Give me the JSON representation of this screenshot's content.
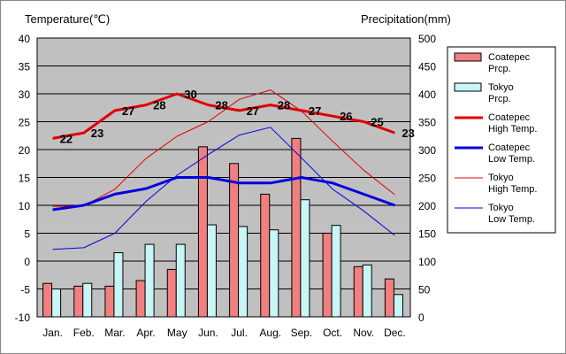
{
  "chart_data": {
    "type": "bar+line",
    "left_axis_title": "Temperature(℃)",
    "right_axis_title": "Precipitation(mm)",
    "left_ylim": [
      -10,
      40
    ],
    "left_ticks": [
      "-10",
      "-5",
      "0",
      "5",
      "10",
      "15",
      "20",
      "25",
      "30",
      "35",
      "40"
    ],
    "right_ylim": [
      0,
      500
    ],
    "right_ticks": [
      "0",
      "50",
      "100",
      "150",
      "200",
      "250",
      "300",
      "350",
      "400",
      "450",
      "500"
    ],
    "categories": [
      "Jan.",
      "Feb.",
      "Mar.",
      "Apr.",
      "May",
      "Jun.",
      "Jul.",
      "Aug.",
      "Sep.",
      "Oct.",
      "Nov.",
      "Dec."
    ],
    "bar_series": [
      {
        "legend": [
          "Coatepec",
          "Prcp."
        ],
        "color": "#f08080",
        "values": [
          60,
          55,
          55,
          65,
          85,
          305,
          275,
          220,
          320,
          150,
          90,
          68
        ]
      },
      {
        "legend": [
          "Tokyo",
          "Prcp."
        ],
        "color": "#c8f5f5",
        "values": [
          50,
          60,
          115,
          130,
          130,
          165,
          162,
          156,
          210,
          164,
          93,
          40
        ]
      }
    ],
    "line_series": [
      {
        "legend": [
          "Coatepec",
          "High Temp."
        ],
        "color": "#e00000",
        "width": 3,
        "values": [
          22,
          23,
          27,
          28,
          30,
          28,
          27,
          28,
          27,
          26,
          25,
          23
        ],
        "labels": [
          "22",
          "23",
          "27",
          "28",
          "30",
          "28",
          "27",
          "28",
          "27",
          "26",
          "25",
          "23"
        ]
      },
      {
        "legend": [
          "Coatepec",
          "Low Temp."
        ],
        "color": "#0000e0",
        "width": 3,
        "values": [
          9.2,
          10,
          12,
          13,
          15,
          15,
          14,
          14,
          15,
          14,
          12,
          10
        ]
      },
      {
        "legend": [
          "Tokyo",
          "High Temp."
        ],
        "color": "#e00000",
        "width": 1,
        "values": [
          9.8,
          9.9,
          12.9,
          18.4,
          22.4,
          25.0,
          29.0,
          30.7,
          26.9,
          21.5,
          16.3,
          11.9
        ]
      },
      {
        "legend": [
          "Tokyo",
          "Low Temp."
        ],
        "color": "#0000e0",
        "width": 1,
        "values": [
          2.1,
          2.4,
          5.0,
          10.7,
          15.4,
          19.1,
          22.6,
          24.0,
          18.5,
          12.9,
          9.0,
          4.6
        ]
      }
    ],
    "grid": true,
    "legend_position": "right"
  }
}
